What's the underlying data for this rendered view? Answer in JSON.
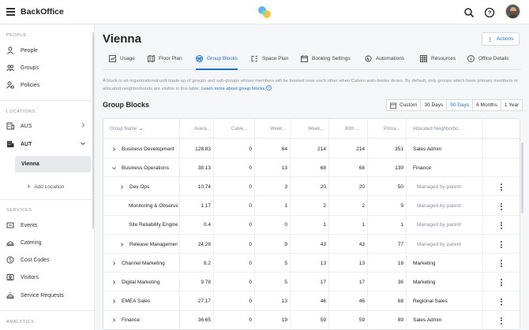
{
  "app": {
    "title": "BackOffice"
  },
  "sidebar": {
    "sections": [
      {
        "label": "PEOPLE"
      },
      {
        "label": "LOCATIONS"
      },
      {
        "label": "SERVICES"
      },
      {
        "label": "ANALYTICS"
      }
    ],
    "people": [
      {
        "label": "People",
        "icon": "person-icon"
      },
      {
        "label": "Groups",
        "icon": "groups-icon"
      },
      {
        "label": "Policies",
        "icon": "policy-icon"
      }
    ],
    "locations": [
      {
        "label": "AUS",
        "icon": "building-icon",
        "expanded": false
      },
      {
        "label": "AUT",
        "icon": "building-icon",
        "expanded": true
      }
    ],
    "selected_location": "Vienna",
    "add_location": "Add Location",
    "services": [
      {
        "label": "Events",
        "icon": "event-icon"
      },
      {
        "label": "Catering",
        "icon": "catering-icon"
      },
      {
        "label": "Cost Codes",
        "icon": "cost-code-icon"
      },
      {
        "label": "Visitors",
        "icon": "visitor-icon"
      },
      {
        "label": "Service Requests",
        "icon": "service-request-icon"
      }
    ]
  },
  "page": {
    "title": "Vienna",
    "actions_label": "Actions",
    "tabs": [
      {
        "label": "Usage",
        "icon": "chart-icon",
        "active": false
      },
      {
        "label": "Floor Plan",
        "icon": "map-icon",
        "active": false
      },
      {
        "label": "Group Blocks",
        "icon": "group-blocks-icon",
        "active": true
      },
      {
        "label": "Space Plan",
        "icon": "space-plan-icon",
        "active": false
      },
      {
        "label": "Booking Settings",
        "icon": "booking-settings-icon",
        "active": false
      },
      {
        "label": "Automations",
        "icon": "automation-icon",
        "active": false
      },
      {
        "label": "Resources",
        "icon": "grid-icon",
        "active": false
      },
      {
        "label": "Office Details",
        "icon": "info-icon",
        "active": false
      }
    ],
    "description": "A block is an organizational unit made up of groups and sub-groups whose members will be booked near each other when Calven auto-books desks. By default, only groups which have primary members or allocated neighborhoods are visible in this table.",
    "learn_more": "Learn more about group blocks",
    "section_title": "Group Blocks",
    "ranges": [
      {
        "label": "Custom",
        "active": false
      },
      {
        "label": "30 Days",
        "active": false
      },
      {
        "label": "90 Days",
        "active": true
      },
      {
        "label": "6 Months",
        "active": false
      },
      {
        "label": "1 Year",
        "active": false
      }
    ]
  },
  "table": {
    "columns": [
      "Group Name",
      "Avera...",
      "Calve...",
      "Week...",
      "Week...",
      "90th ...",
      "Prima...",
      "Allocated Neighborho..."
    ],
    "rows": [
      {
        "name": "Business Development",
        "level": 0,
        "caret": "right",
        "avg": "128.83",
        "calven": "0",
        "week1": "64",
        "week2": "214",
        "p90": "214",
        "primary": "351",
        "neighborhood": "Sales Admin",
        "muted": false,
        "menu": false
      },
      {
        "name": "Business Operations",
        "level": 0,
        "caret": "down",
        "avg": "38.13",
        "calven": "0",
        "week1": "13",
        "week2": "68",
        "p90": "68",
        "primary": "139",
        "neighborhood": "Finance",
        "muted": false,
        "menu": false
      },
      {
        "name": "Dev Ops",
        "level": 1,
        "caret": "right",
        "avg": "10.74",
        "calven": "0",
        "week1": "3",
        "week2": "20",
        "p90": "20",
        "primary": "50",
        "neighborhood": "Managed by parent",
        "muted": true,
        "menu": true
      },
      {
        "name": "Monitoring & Observability",
        "level": 2,
        "caret": "none",
        "avg": "1.17",
        "calven": "0",
        "week1": "1",
        "week2": "2",
        "p90": "2",
        "primary": "9",
        "neighborhood": "Managed by parent",
        "muted": true,
        "menu": true
      },
      {
        "name": "Site Reliability Engineering",
        "level": 2,
        "caret": "none",
        "avg": "0.4",
        "calven": "0",
        "week1": "0",
        "week2": "1",
        "p90": "1",
        "primary": "1",
        "neighborhood": "Managed by parent",
        "muted": true,
        "menu": true
      },
      {
        "name": "Release Management",
        "level": 1,
        "caret": "right",
        "avg": "24.28",
        "calven": "0",
        "week1": "9",
        "week2": "43",
        "p90": "43",
        "primary": "77",
        "neighborhood": "Managed by parent",
        "muted": true,
        "menu": true
      },
      {
        "name": "Channel Marketing",
        "level": 0,
        "caret": "right",
        "avg": "8.2",
        "calven": "0",
        "week1": "5",
        "week2": "13",
        "p90": "13",
        "primary": "18",
        "neighborhood": "Marketing",
        "muted": false,
        "menu": true
      },
      {
        "name": "Digital Marketing",
        "level": 0,
        "caret": "right",
        "avg": "9.78",
        "calven": "0",
        "week1": "5",
        "week2": "17",
        "p90": "17",
        "primary": "36",
        "neighborhood": "Marketing",
        "muted": false,
        "menu": true
      },
      {
        "name": "EMEA Sales",
        "level": 0,
        "caret": "right",
        "avg": "27.17",
        "calven": "0",
        "week1": "13",
        "week2": "46",
        "p90": "46",
        "primary": "68",
        "neighborhood": "Regional Sales",
        "muted": false,
        "menu": true
      },
      {
        "name": "Finance",
        "level": 0,
        "caret": "right",
        "avg": "36.65",
        "calven": "0",
        "week1": "19",
        "week2": "59",
        "p90": "59",
        "primary": "89",
        "neighborhood": "Sales Admin",
        "muted": false,
        "menu": true
      }
    ]
  },
  "colors": {
    "accent": "#1a73c9",
    "muted": "#8a9099"
  }
}
